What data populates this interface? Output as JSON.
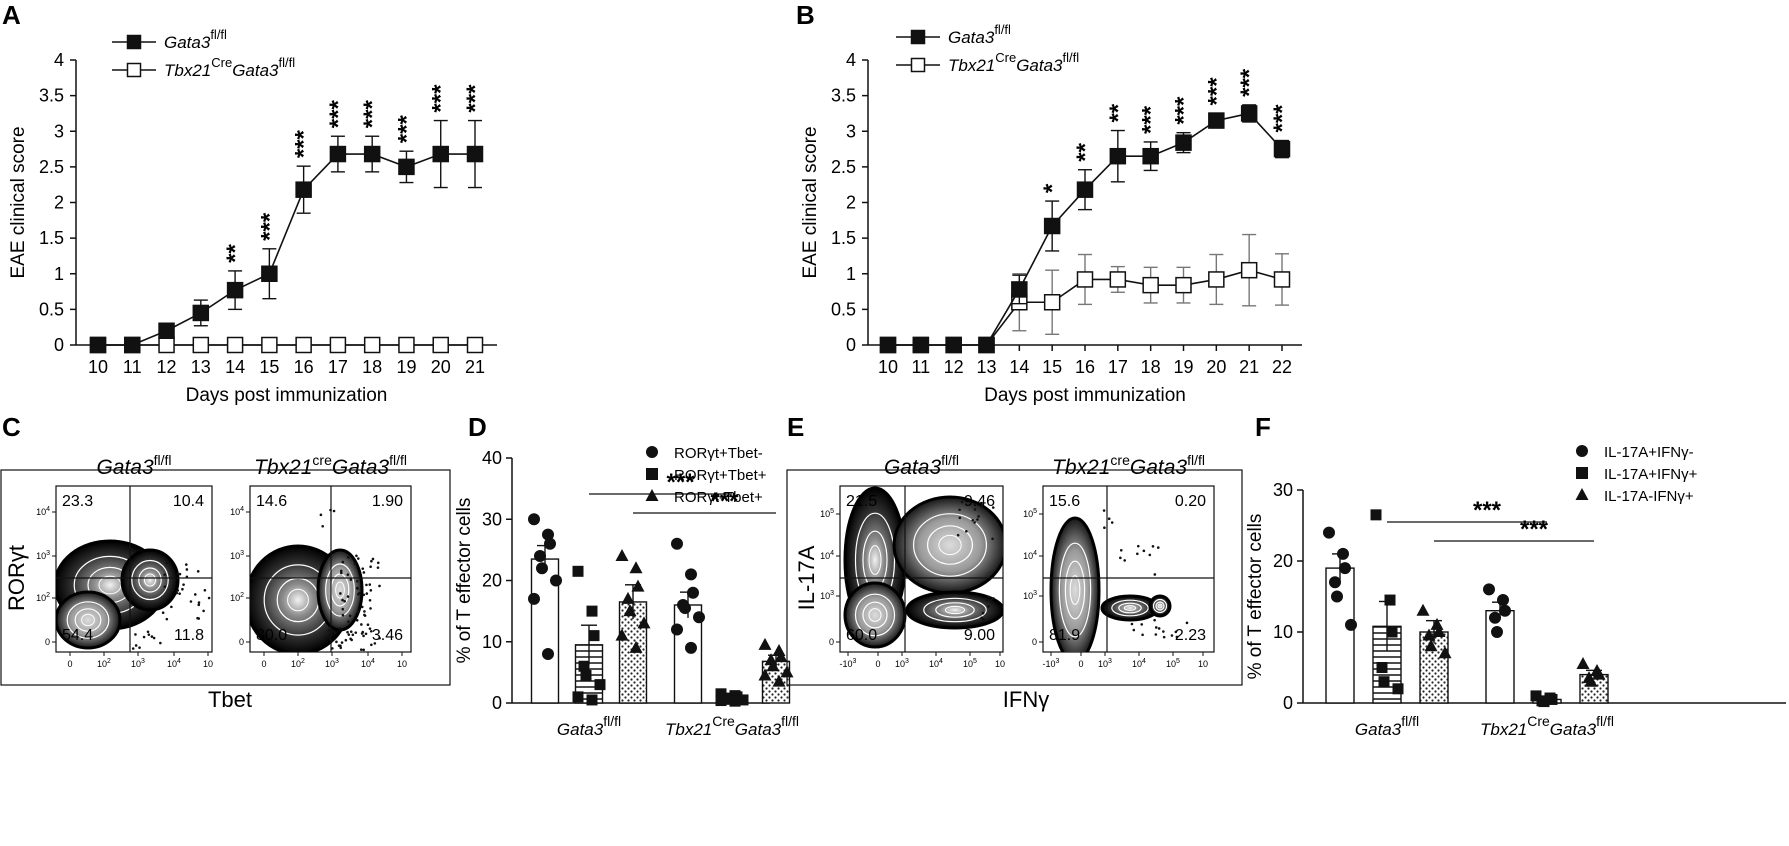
{
  "figure": {
    "panels": {
      "A": "A",
      "B": "B",
      "C": "C",
      "D": "D",
      "E": "E",
      "F": "F"
    }
  },
  "chart_data": [
    {
      "id": "A",
      "type": "line",
      "xlabel": "Days post immunization",
      "ylabel": "EAE clinical score",
      "ylim": [
        0,
        4
      ],
      "yticks": [
        "0",
        "0.5",
        "1",
        "1.5",
        "2",
        "2.5",
        "3",
        "3.5",
        "4"
      ],
      "x": [
        "10",
        "11",
        "12",
        "13",
        "14",
        "15",
        "16",
        "17",
        "18",
        "19",
        "20",
        "21"
      ],
      "series": [
        {
          "name": "Gata3fl/fl",
          "legend_main": "Gata3",
          "legend_sup": "fl/fl",
          "legend_pre": "",
          "legend_pre_sup": "",
          "marker": "filled-square",
          "values": [
            0,
            0,
            0.2,
            0.45,
            0.77,
            1.0,
            2.18,
            2.68,
            2.68,
            2.5,
            2.68,
            2.68
          ],
          "errors": [
            0,
            0,
            0.05,
            0.18,
            0.27,
            0.35,
            0.33,
            0.25,
            0.25,
            0.22,
            0.47,
            0.47
          ]
        },
        {
          "name": "Tbx21CreGata3fl/fl",
          "legend_main": "Gata3",
          "legend_sup": "fl/fl",
          "legend_pre": "Tbx21",
          "legend_pre_sup": "Cre",
          "marker": "open-square",
          "values": [
            0,
            0,
            0,
            0,
            0,
            0,
            0,
            0,
            0,
            0,
            0,
            0
          ],
          "errors": [
            0,
            0,
            0,
            0,
            0,
            0,
            0,
            0,
            0,
            0,
            0,
            0
          ]
        }
      ],
      "significance": [
        {
          "x": "14",
          "label": "**"
        },
        {
          "x": "15",
          "label": "***"
        },
        {
          "x": "16",
          "label": "***"
        },
        {
          "x": "17",
          "label": "***"
        },
        {
          "x": "18",
          "label": "***"
        },
        {
          "x": "19",
          "label": "***"
        },
        {
          "x": "20",
          "label": "***"
        },
        {
          "x": "21",
          "label": "***"
        }
      ]
    },
    {
      "id": "B",
      "type": "line",
      "xlabel": "Days post immunization",
      "ylabel": "EAE clinical score",
      "ylim": [
        0,
        4
      ],
      "yticks": [
        "0",
        "0.5",
        "1",
        "1.5",
        "2",
        "2.5",
        "3",
        "3.5",
        "4"
      ],
      "x": [
        "10",
        "11",
        "12",
        "13",
        "14",
        "15",
        "16",
        "17",
        "18",
        "19",
        "20",
        "21",
        "22"
      ],
      "series": [
        {
          "name": "Gata3fl/fl",
          "legend_main": "Gata3",
          "legend_sup": "fl/fl",
          "legend_pre": "",
          "legend_pre_sup": "",
          "marker": "filled-square",
          "values": [
            0,
            0,
            0,
            0,
            0.78,
            1.67,
            2.18,
            2.65,
            2.65,
            2.84,
            3.15,
            3.25,
            2.75
          ],
          "errors": [
            0,
            0,
            0,
            0,
            0.2,
            0.35,
            0.28,
            0.36,
            0.2,
            0.14,
            0.1,
            0.12,
            0.12
          ]
        },
        {
          "name": "Tbx21CreGata3fl/fl",
          "legend_main": "Gata3",
          "legend_sup": "fl/fl",
          "legend_pre": "Tbx21",
          "legend_pre_sup": "Cre",
          "marker": "open-square",
          "values": [
            0,
            0,
            0,
            0,
            0.6,
            0.6,
            0.92,
            0.92,
            0.84,
            0.84,
            0.92,
            1.05,
            0.92
          ],
          "errors": [
            0,
            0,
            0,
            0,
            0.4,
            0.45,
            0.35,
            0.18,
            0.25,
            0.25,
            0.35,
            0.5,
            0.36
          ]
        }
      ],
      "significance": [
        {
          "x": "15",
          "label": "*"
        },
        {
          "x": "16",
          "label": "**"
        },
        {
          "x": "17",
          "label": "**"
        },
        {
          "x": "18",
          "label": "***"
        },
        {
          "x": "19",
          "label": "***"
        },
        {
          "x": "20",
          "label": "***"
        },
        {
          "x": "21",
          "label": "***"
        },
        {
          "x": "22",
          "label": "***"
        }
      ]
    },
    {
      "id": "C",
      "type": "flow",
      "xlabel": "Tbet",
      "ylabel": "RORγt",
      "ticks_x": [
        "0",
        "10",
        "10",
        "10",
        "10"
      ],
      "ticks_x_sup": [
        "",
        "2",
        "3",
        "4",
        ""
      ],
      "ticks_y": [
        "0",
        "10",
        "10",
        "10"
      ],
      "ticks_y_sup": [
        "",
        "2",
        "3",
        "4"
      ],
      "plots": [
        {
          "title": "Gata3",
          "title_sup": "fl/fl",
          "title_pre": "",
          "title_pre_sup": "",
          "quadrants": {
            "ul": "23.3",
            "ur": "10.4",
            "ll": "54.4",
            "lr": "11.8"
          }
        },
        {
          "title": "Gata3",
          "title_sup": "fl/fl",
          "title_pre": "Tbx21",
          "title_pre_sup": "cre",
          "quadrants": {
            "ul": "14.6",
            "ur": "1.90",
            "ll": "80.0",
            "lr": "3.46"
          }
        }
      ]
    },
    {
      "id": "D",
      "type": "bar",
      "ylabel": "% of T effector cells",
      "ylim": [
        0,
        40
      ],
      "yticks": [
        "0",
        "10",
        "20",
        "30",
        "40"
      ],
      "groups": [
        {
          "label": "Gata3",
          "label_sup": "fl/fl",
          "label_pre": "",
          "label_pre_sup": ""
        },
        {
          "label": "Gata3",
          "label_sup": "fl/fl",
          "label_pre": "Tbx21",
          "label_pre_sup": "Cre"
        }
      ],
      "legend": [
        {
          "name": "RORγt+Tbet-",
          "marker": "circle",
          "pattern": "white"
        },
        {
          "name": "RORγt+Tbet+",
          "marker": "square",
          "pattern": "hlines"
        },
        {
          "name": "RORγt-Tbet+",
          "marker": "triangle",
          "pattern": "dots"
        }
      ],
      "series": [
        {
          "name": "RORγt+Tbet-",
          "values": [
            23.5,
            16.0
          ],
          "errors": [
            2.2,
            2.1
          ]
        },
        {
          "name": "RORγt+Tbet+",
          "values": [
            9.5,
            1.0
          ],
          "errors": [
            3.2,
            0.3
          ]
        },
        {
          "name": "RORγt-Tbet+",
          "values": [
            16.5,
            6.8
          ],
          "errors": [
            2.8,
            1.0
          ]
        }
      ],
      "points": [
        [
          [
            30.0,
            27.5,
            26.0,
            24.0,
            22.0,
            20.0,
            17.0,
            8.0
          ],
          [
            26.0,
            21.0,
            18.0,
            16.0,
            15.5,
            14.0,
            12.0,
            9.0
          ]
        ],
        [
          [
            21.5,
            15.0,
            11.0,
            6.0,
            4.5,
            3.0,
            1.0,
            0.5
          ],
          [
            1.5,
            1.2,
            1.0,
            0.8,
            0.6,
            0.5,
            0.4,
            0.3
          ]
        ],
        [
          [
            24.0,
            22.0,
            19.0,
            17.0,
            15.0,
            13.0,
            11.0,
            9.0
          ],
          [
            9.5,
            8.5,
            7.5,
            7.0,
            6.0,
            5.0,
            4.5,
            3.5
          ]
        ]
      ],
      "significance": [
        {
          "series_index": 1,
          "label": "***"
        },
        {
          "series_index": 2,
          "label": "***"
        }
      ]
    },
    {
      "id": "E",
      "type": "flow",
      "xlabel": "IFNγ",
      "ylabel": "IL-17A",
      "ticks_x": [
        "-10",
        "0",
        "10",
        "10",
        "10",
        "10"
      ],
      "ticks_x_sup": [
        "3",
        "",
        "3",
        "4",
        "5",
        ""
      ],
      "ticks_y": [
        "0",
        "10",
        "10",
        "10"
      ],
      "ticks_y_sup": [
        "",
        "3",
        "4",
        "5"
      ],
      "plots": [
        {
          "title": "Gata3",
          "title_sup": "fl/fl",
          "title_pre": "",
          "title_pre_sup": "",
          "quadrants": {
            "ul": "21.5",
            "ur": "9.46",
            "ll": "60.0",
            "lr": "9.00"
          }
        },
        {
          "title": "Gata3",
          "title_sup": "fl/fl",
          "title_pre": "Tbx21",
          "title_pre_sup": "cre",
          "quadrants": {
            "ul": "15.6",
            "ur": "0.20",
            "ll": "81.9",
            "lr": "2.23"
          }
        }
      ]
    },
    {
      "id": "F",
      "type": "bar",
      "ylabel": "% of T effector cells",
      "ylim": [
        0,
        30
      ],
      "yticks": [
        "0",
        "10",
        "20",
        "30"
      ],
      "groups": [
        {
          "label": "Gata3",
          "label_sup": "fl/fl",
          "label_pre": "",
          "label_pre_sup": ""
        },
        {
          "label": "Gata3",
          "label_sup": "fl/fl",
          "label_pre": "Tbx21",
          "label_pre_sup": "Cre"
        }
      ],
      "legend": [
        {
          "name": "IL-17A+IFNγ-",
          "marker": "circle",
          "pattern": "white"
        },
        {
          "name": "IL-17A+IFNγ+",
          "marker": "square",
          "pattern": "hlines"
        },
        {
          "name": "IL-17A-IFNγ+",
          "marker": "triangle",
          "pattern": "dots"
        }
      ],
      "series": [
        {
          "name": "IL-17A+IFNγ-",
          "values": [
            19.0,
            13.0
          ],
          "errors": [
            2.0,
            1.2
          ]
        },
        {
          "name": "IL-17A+IFNγ+",
          "values": [
            10.8,
            0.5
          ],
          "errors": [
            3.5,
            0.2
          ]
        },
        {
          "name": "IL-17A-IFNγ+",
          "values": [
            10.0,
            4.0
          ],
          "errors": [
            1.6,
            0.6
          ]
        }
      ],
      "points": [
        [
          [
            24.0,
            21.0,
            19.0,
            17.0,
            15.0,
            11.0
          ],
          [
            16.0,
            14.5,
            13.0,
            12.0,
            10.0
          ]
        ],
        [
          [
            26.5,
            14.5,
            10.0,
            5.0,
            3.0,
            2.0
          ],
          [
            1.0,
            0.7,
            0.5,
            0.3,
            0.2
          ]
        ],
        [
          [
            13.0,
            11.0,
            10.0,
            9.5,
            8.0,
            7.0
          ],
          [
            5.5,
            4.5,
            4.0,
            3.5,
            3.0
          ]
        ]
      ],
      "significance": [
        {
          "series_index": 1,
          "label": "***"
        },
        {
          "series_index": 2,
          "label": "***"
        }
      ]
    }
  ]
}
